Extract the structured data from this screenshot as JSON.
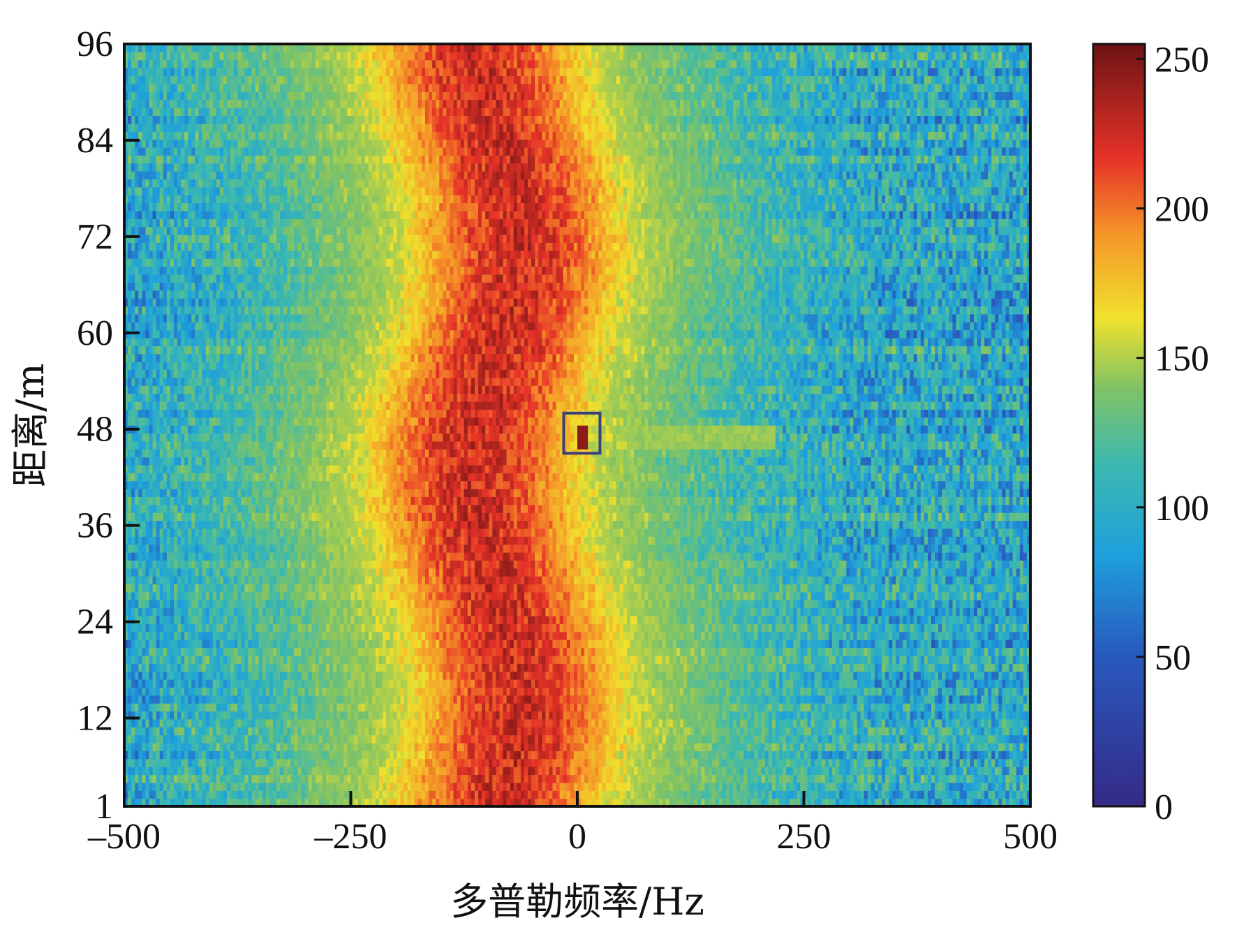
{
  "chart_data": {
    "type": "heatmap",
    "title": "",
    "xlabel": "多普勒频率/Hz",
    "ylabel": "距离/m",
    "xlim": [
      -500,
      500
    ],
    "ylim": [
      1,
      96
    ],
    "x_ticks": [
      -500,
      -250,
      0,
      250,
      500
    ],
    "x_tick_labels": [
      "–500",
      "–250",
      "0",
      "250",
      "500"
    ],
    "y_ticks": [
      1,
      12,
      24,
      36,
      48,
      60,
      72,
      84,
      96
    ],
    "y_tick_labels": [
      "1",
      "12",
      "24",
      "36",
      "48",
      "60",
      "72",
      "84",
      "96"
    ],
    "colorbar": {
      "range": [
        0,
        255
      ],
      "ticks": [
        0,
        50,
        100,
        150,
        200,
        250
      ],
      "tick_labels": [
        "0",
        "50",
        "100",
        "150",
        "200",
        "250"
      ],
      "colormap": "parula-jet"
    },
    "rows": 96,
    "cols": 256,
    "clutter_ridge": {
      "center_doppler_hz": -90,
      "center_drift_hz": 25,
      "half_width_hz": 70,
      "peak_value": 225,
      "halo_half_width_hz": 160,
      "halo_value": 150
    },
    "background": {
      "mean_value": 95,
      "spread": 45
    },
    "target": {
      "doppler_hz": 5,
      "range_m": 47,
      "peak_value": 245,
      "streak_end_hz": 220,
      "streak_value": 145
    },
    "target_box": {
      "x_range_hz": [
        -15,
        25
      ],
      "y_range_m": [
        45,
        50
      ],
      "color": "#3b3f7a"
    },
    "grid": false,
    "legend": "none"
  }
}
